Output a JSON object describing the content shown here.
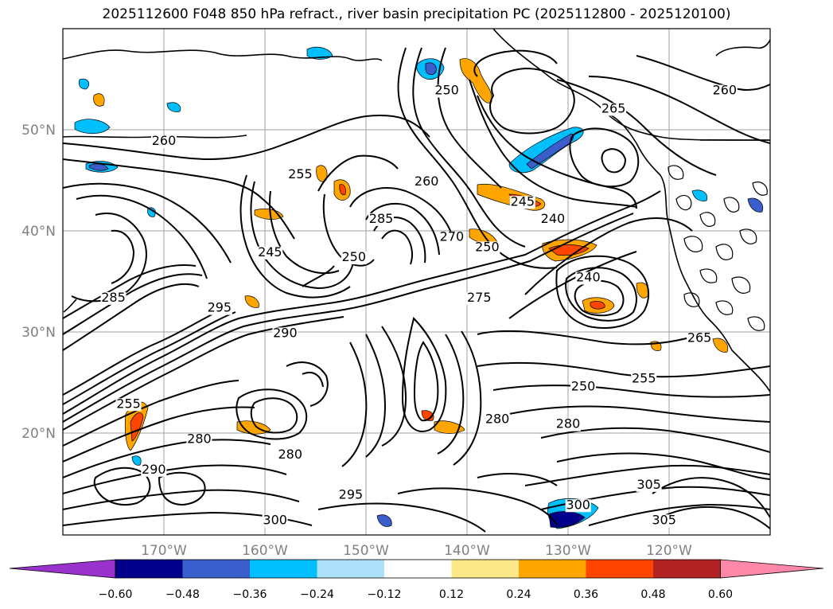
{
  "title": "2025112600 F048 850 hPa refract., river basin precipitation PC (2025112800 - 2025120100)",
  "map": {
    "lon_labels": [
      "170°W",
      "160°W",
      "150°W",
      "140°W",
      "130°W",
      "120°W"
    ],
    "lat_labels": [
      "50°N",
      "40°N",
      "30°N",
      "20°N"
    ],
    "contour_labels": [
      {
        "text": "260",
        "lon": -170.0,
        "lat": 48.5
      },
      {
        "text": "255",
        "lon": -156.5,
        "lat": 45.2
      },
      {
        "text": "285",
        "lon": -148.5,
        "lat": 40.8
      },
      {
        "text": "260",
        "lon": -144.0,
        "lat": 44.5
      },
      {
        "text": "245",
        "lon": -159.5,
        "lat": 37.5
      },
      {
        "text": "250",
        "lon": -151.2,
        "lat": 37.0
      },
      {
        "text": "270",
        "lon": -141.5,
        "lat": 39.0
      },
      {
        "text": "250",
        "lon": -138.0,
        "lat": 38.0
      },
      {
        "text": "245",
        "lon": -134.5,
        "lat": 42.5
      },
      {
        "text": "240",
        "lon": -131.5,
        "lat": 40.8
      },
      {
        "text": "240",
        "lon": -128.0,
        "lat": 35.0
      },
      {
        "text": "275",
        "lon": -138.8,
        "lat": 33.0
      },
      {
        "text": "290",
        "lon": -158.0,
        "lat": 29.5
      },
      {
        "text": "285",
        "lon": -175.0,
        "lat": 33.0
      },
      {
        "text": "295",
        "lon": -164.5,
        "lat": 32.0
      },
      {
        "text": "250",
        "lon": -142.0,
        "lat": 53.5
      },
      {
        "text": "265",
        "lon": -125.5,
        "lat": 51.7
      },
      {
        "text": "260",
        "lon": -114.5,
        "lat": 53.5
      },
      {
        "text": "255",
        "lon": -122.5,
        "lat": 25.0
      },
      {
        "text": "250",
        "lon": -128.5,
        "lat": 24.2
      },
      {
        "text": "280",
        "lon": -137.0,
        "lat": 21.0
      },
      {
        "text": "280",
        "lon": -130.0,
        "lat": 20.5
      },
      {
        "text": "255",
        "lon": -173.5,
        "lat": 22.5
      },
      {
        "text": "280",
        "lon": -166.5,
        "lat": 19.0
      },
      {
        "text": "280",
        "lon": -157.5,
        "lat": 17.5
      },
      {
        "text": "290",
        "lon": -171.0,
        "lat": 16.0
      },
      {
        "text": "300",
        "lon": -159.0,
        "lat": 11.0
      },
      {
        "text": "295",
        "lon": -151.5,
        "lat": 13.5
      },
      {
        "text": "305",
        "lon": -122.0,
        "lat": 14.5
      },
      {
        "text": "305",
        "lon": -120.5,
        "lat": 11.0
      },
      {
        "text": "300",
        "lon": -129.0,
        "lat": 12.5
      },
      {
        "text": "265",
        "lon": -117.0,
        "lat": 29.0
      }
    ]
  },
  "colorbar": {
    "tick_labels": [
      "−0.60",
      "−0.48",
      "−0.36",
      "−0.24",
      "−0.12",
      "0.12",
      "0.24",
      "0.36",
      "0.48",
      "0.60"
    ],
    "colors": [
      "#9932cc",
      "#00008b",
      "#3a5fcd",
      "#00bfff",
      "#ade2fa",
      "#ffffff",
      "#fde98a",
      "#ffa500",
      "#ff4500",
      "#b22222",
      "#ff88aa"
    ]
  }
}
